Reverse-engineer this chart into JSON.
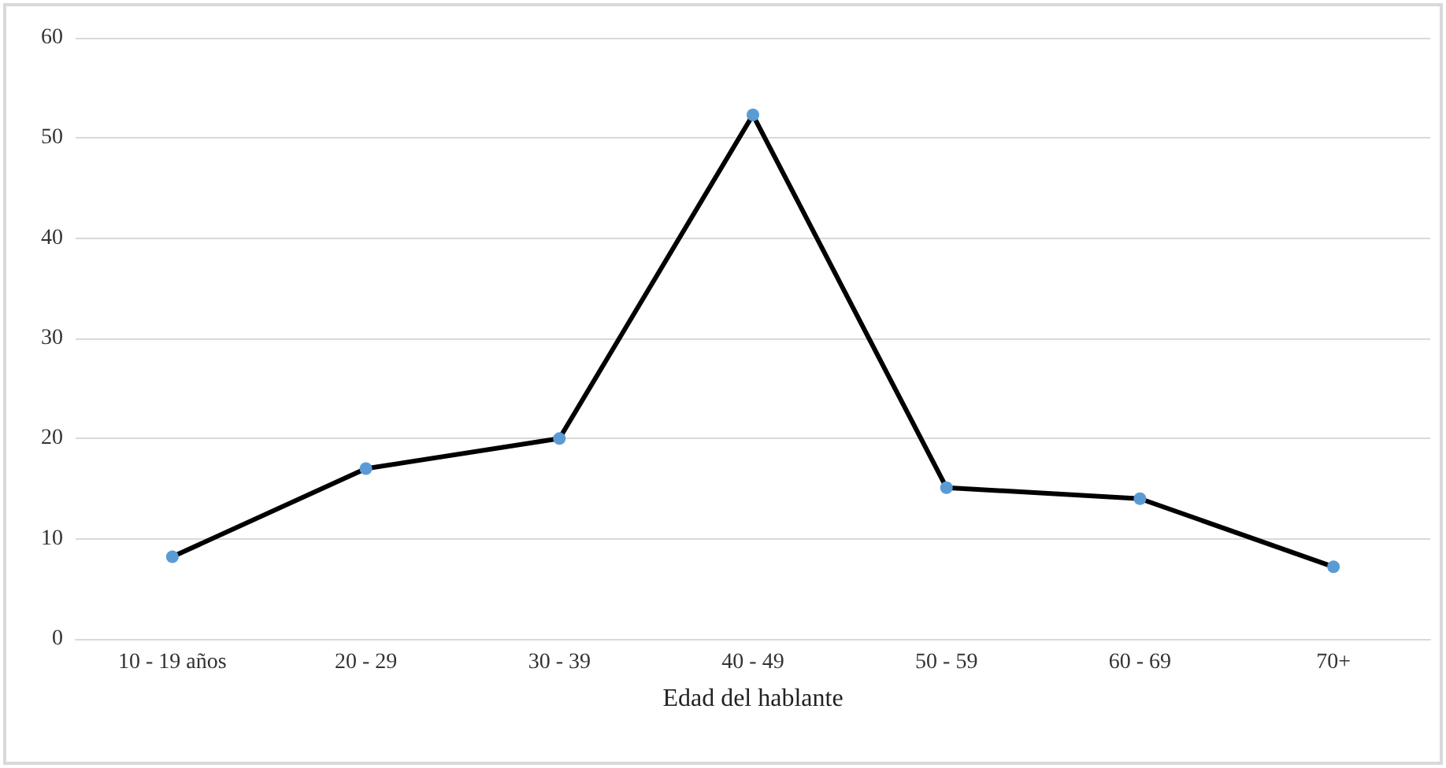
{
  "chart_data": {
    "type": "line",
    "xlabel": "Edad del hablante",
    "categories": [
      "10 - 19 años",
      "20 - 29",
      "30 - 39",
      "40 - 49",
      "50 - 59",
      "60 - 69",
      "70+"
    ],
    "series": [
      {
        "color": "#000000",
        "colors": [
          "#5b9bd5",
          "#5b9bd5",
          "#5b9bd5",
          "#5b9bd5",
          "#5b9bd5",
          "#5b9bd5",
          "#5b9bd5"
        ],
        "values": [
          8.2,
          17,
          20,
          52.3,
          15.1,
          14,
          7.2
        ]
      }
    ],
    "ylim": [
      0,
      60
    ],
    "yticks": [
      0,
      10,
      20,
      30,
      40,
      50,
      60
    ],
    "grid": "y",
    "marker": "circle",
    "line_style": "solid"
  }
}
